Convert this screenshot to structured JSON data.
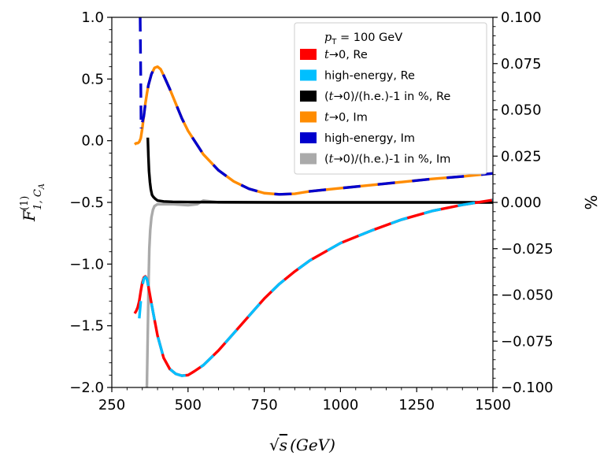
{
  "chart_data": {
    "type": "line",
    "legend_title": "p_T = 100 GeV",
    "legend_title_parts": {
      "var": "p",
      "sub": "T",
      "rest": " = 100 GeV"
    },
    "xlabel": "√s (GeV)",
    "xlabel_parts": {
      "root": "√",
      "s": "s",
      "rest": "(GeV)"
    },
    "ylabel": "F^(1)_{1,C_A}",
    "ylabel_parts": {
      "base": "F",
      "sup": "(1)",
      "sub": "1, C",
      "subsub": "A"
    },
    "ylabel_right": "%",
    "xlim": [
      250,
      1500
    ],
    "ylim": [
      -2.0,
      1.0
    ],
    "ylim_right": [
      -0.1,
      0.1
    ],
    "x_ticks": [
      "250",
      "500",
      "750",
      "1000",
      "1250",
      "1500"
    ],
    "y_ticks": [
      "−2.0",
      "−1.5",
      "−1.0",
      "−0.5",
      "0.0",
      "0.5",
      "1.0"
    ],
    "y_ticks_right": [
      "−0.100",
      "−0.075",
      "−0.050",
      "−0.025",
      "0.000",
      "0.025",
      "0.050",
      "0.075",
      "0.100"
    ],
    "legend_location": "top-right",
    "series": [
      {
        "name": "t→0, Re",
        "label_parts": [
          "t",
          "→0, Re"
        ],
        "axis": "left",
        "color": "#ff0000",
        "style": "dashed-overlay-base",
        "x": [
          325,
          330,
          335,
          340,
          345,
          350,
          355,
          360,
          365,
          370,
          380,
          390,
          400,
          420,
          440,
          460,
          480,
          500,
          520,
          550,
          600,
          650,
          700,
          750,
          800,
          850,
          900,
          950,
          1000,
          1100,
          1200,
          1300,
          1400,
          1500
        ],
        "y": [
          -1.4,
          -1.38,
          -1.35,
          -1.3,
          -1.22,
          -1.15,
          -1.11,
          -1.1,
          -1.12,
          -1.18,
          -1.32,
          -1.45,
          -1.58,
          -1.76,
          -1.85,
          -1.89,
          -1.905,
          -1.9,
          -1.87,
          -1.82,
          -1.7,
          -1.56,
          -1.42,
          -1.28,
          -1.16,
          -1.06,
          -0.97,
          -0.9,
          -0.83,
          -0.73,
          -0.64,
          -0.57,
          -0.52,
          -0.48
        ]
      },
      {
        "name": "high-energy, Re",
        "label_parts": [
          "",
          "high-energy, Re"
        ],
        "axis": "left",
        "color": "#00bfff",
        "style": "dashed",
        "x": [
          340,
          345,
          350,
          355,
          360,
          365,
          370,
          380,
          390,
          400,
          420,
          440,
          460,
          480,
          500,
          520,
          550,
          600,
          650,
          700,
          750,
          800,
          850,
          900,
          950,
          1000,
          1100,
          1200,
          1300,
          1400,
          1500
        ],
        "y": [
          -1.44,
          -1.3,
          -1.18,
          -1.12,
          -1.105,
          -1.12,
          -1.18,
          -1.32,
          -1.45,
          -1.58,
          -1.76,
          -1.85,
          -1.89,
          -1.905,
          -1.9,
          -1.87,
          -1.82,
          -1.7,
          -1.56,
          -1.42,
          -1.28,
          -1.16,
          -1.06,
          -0.97,
          -0.9,
          -0.83,
          -0.73,
          -0.64,
          -0.57,
          -0.52,
          -0.48
        ]
      },
      {
        "name": "(t→0)/(h.e.)-1 in %, Re",
        "label_parts": [
          "(t",
          "→0)/(h.e.)-1 in %, Re"
        ],
        "axis": "right",
        "color": "#000000",
        "style": "solid",
        "x": [
          368,
          370,
          372,
          375,
          378,
          382,
          386,
          392,
          400,
          420,
          450,
          500,
          600,
          800,
          1000,
          1250,
          1500
        ],
        "y": [
          0.035,
          0.025,
          0.017,
          0.011,
          0.007,
          0.004,
          0.003,
          0.002,
          0.001,
          0.0005,
          0.0003,
          0.0002,
          0.0001,
          0.0,
          0.0,
          0.0,
          0.0
        ]
      },
      {
        "name": "t→0, Im",
        "label_parts": [
          "t",
          "→0, Im"
        ],
        "axis": "left",
        "color": "#ff8c00",
        "style": "dashed-overlay-base",
        "x": [
          325,
          330,
          335,
          340,
          345,
          350,
          355,
          360,
          365,
          370,
          380,
          390,
          400,
          410,
          420,
          440,
          460,
          480,
          500,
          550,
          600,
          650,
          700,
          750,
          800,
          850,
          900,
          1000,
          1100,
          1200,
          1300,
          1400,
          1500
        ],
        "y": [
          -0.03,
          -0.02,
          -0.02,
          -0.01,
          0.02,
          0.1,
          0.2,
          0.3,
          0.38,
          0.45,
          0.54,
          0.59,
          0.6,
          0.58,
          0.53,
          0.42,
          0.3,
          0.18,
          0.08,
          -0.11,
          -0.24,
          -0.33,
          -0.39,
          -0.425,
          -0.435,
          -0.43,
          -0.41,
          -0.385,
          -0.36,
          -0.335,
          -0.31,
          -0.29,
          -0.265
        ]
      },
      {
        "name": "high-energy, Im",
        "label_parts": [
          "",
          "high-energy, Im"
        ],
        "axis": "left",
        "color": "#0000cd",
        "style": "dashed",
        "x": [
          350,
          355,
          360,
          365,
          370,
          380,
          390,
          400,
          410,
          420,
          440,
          460,
          480,
          500,
          550,
          600,
          650,
          700,
          750,
          800,
          850,
          900,
          1000,
          1100,
          1200,
          1300,
          1400,
          1500
        ],
        "y": [
          0.15,
          0.2,
          0.3,
          0.38,
          0.45,
          0.54,
          0.59,
          0.6,
          0.58,
          0.53,
          0.42,
          0.3,
          0.18,
          0.08,
          -0.11,
          -0.24,
          -0.33,
          -0.39,
          -0.425,
          -0.435,
          -0.43,
          -0.41,
          -0.385,
          -0.36,
          -0.335,
          -0.31,
          -0.29,
          -0.265
        ]
      },
      {
        "name": "(t→0)/(h.e.)-1 in %, Im",
        "label_parts": [
          "(t",
          "→0)/(h.e.)-1 in %, Im"
        ],
        "axis": "right",
        "color": "#aaaaaa",
        "style": "solid",
        "x": [
          365,
          367,
          369,
          371,
          373,
          376,
          380,
          385,
          390,
          400,
          420,
          450,
          500,
          530,
          550,
          600,
          800,
          1000,
          1250,
          1500
        ],
        "y": [
          -0.1,
          -0.08,
          -0.06,
          -0.04,
          -0.025,
          -0.015,
          -0.008,
          -0.004,
          -0.002,
          -0.001,
          -0.001,
          -0.001,
          -0.0015,
          -0.001,
          0.001,
          0.0,
          0.0,
          0.0,
          0.0,
          0.0
        ]
      }
    ],
    "extra_marks": [
      {
        "name": "high-energy-im-divergence",
        "axis": "left",
        "color": "#0000cd",
        "x": [
          343,
          345,
          346
        ],
        "y": [
          1.0,
          0.5,
          0.1
        ]
      }
    ]
  }
}
